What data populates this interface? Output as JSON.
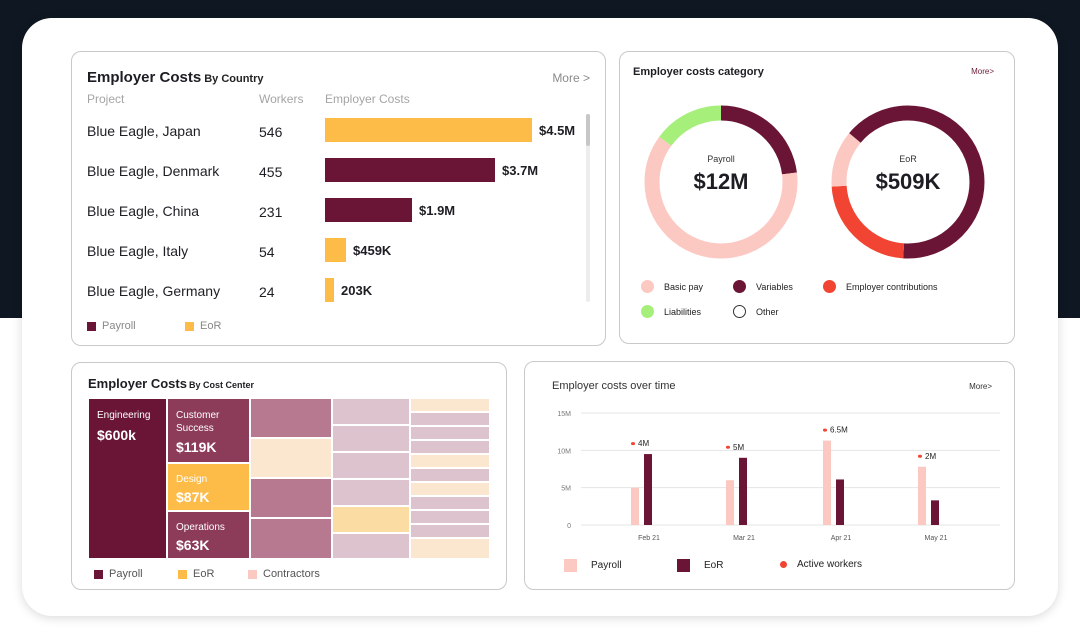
{
  "colors": {
    "payroll": "#6b1536",
    "eor": "#fdbb47",
    "basic_pay": "#fcc8c2",
    "liabilities": "#a6ef7a",
    "employer_contributions": "#f24432",
    "contractors": "#f9c9c2"
  },
  "country_card": {
    "title": "Employer Costs",
    "subtitle": "By Country",
    "more": "More >",
    "headers": {
      "project": "Project",
      "workers": "Workers",
      "costs": "Employer Costs"
    },
    "rows": [
      {
        "project": "Blue Eagle, Japan",
        "workers": "546",
        "cost_label": "$4.5M",
        "cost": 4500000,
        "type": "eor"
      },
      {
        "project": "Blue Eagle, Denmark",
        "workers": "455",
        "cost_label": "$3.7M",
        "cost": 3700000,
        "type": "payroll"
      },
      {
        "project": "Blue Eagle, China",
        "workers": "231",
        "cost_label": "$1.9M",
        "cost": 1900000,
        "type": "payroll"
      },
      {
        "project": "Blue Eagle, Italy",
        "workers": "54",
        "cost_label": "$459K",
        "cost": 459000,
        "type": "eor"
      },
      {
        "project": "Blue Eagle, Germany",
        "workers": "24",
        "cost_label": "203K",
        "cost": 203000,
        "type": "eor"
      }
    ],
    "legend": {
      "payroll": "Payroll",
      "eor": "EoR"
    }
  },
  "category_card": {
    "title": "Employer costs category",
    "more": "More>",
    "donuts": [
      {
        "label": "Payroll",
        "value": "$12M",
        "segments": [
          {
            "key": "variables",
            "fraction": 0.23
          },
          {
            "key": "basic_pay",
            "fraction": 0.62
          },
          {
            "key": "liabilities",
            "fraction": 0.15
          }
        ]
      },
      {
        "label": "EoR",
        "value": "$509K",
        "segments": [
          {
            "key": "variables",
            "fraction": 0.51
          },
          {
            "key": "employer_contributions",
            "fraction": 0.23
          },
          {
            "key": "basic_pay",
            "fraction": 0.12
          },
          {
            "key": "variables",
            "fraction": 0.14
          }
        ]
      }
    ],
    "legend": {
      "basic_pay": "Basic pay",
      "variables": "Variables",
      "employer_contributions": "Employer contributions",
      "liabilities": "Liabilities",
      "other": "Other"
    }
  },
  "center_card": {
    "title": "Employer Costs",
    "subtitle": "By Cost Center",
    "engineering": {
      "label": "Engineering",
      "value": "$600k"
    },
    "customer_success": {
      "label1": "Customer",
      "label2": "Success",
      "value": "$119K"
    },
    "design": {
      "label": "Design",
      "value": "$87K"
    },
    "operations": {
      "label": "Operations",
      "value": "$63K"
    },
    "legend": {
      "payroll": "Payroll",
      "eor": "EoR",
      "contractors": "Contractors"
    }
  },
  "time_card": {
    "title": "Employer costs over time",
    "more": "More>",
    "legend": {
      "payroll": "Payroll",
      "eor": "EoR",
      "active_workers": "Active workers"
    },
    "chart_data": {
      "type": "bar",
      "categories": [
        "Feb 21",
        "Mar 21",
        "Apr 21",
        "May 21"
      ],
      "y_ticks": [
        "15M",
        "10M",
        "5M",
        "0"
      ],
      "ylim": [
        0,
        15000000
      ],
      "series": [
        {
          "name": "Payroll",
          "values": [
            5000000,
            6000000,
            11300000,
            7800000
          ]
        },
        {
          "name": "EoR",
          "values": [
            9500000,
            9000000,
            6100000,
            3300000
          ]
        },
        {
          "name": "Active workers",
          "labels": [
            "4M",
            "5M",
            "6.5M",
            "2M"
          ]
        }
      ]
    }
  }
}
